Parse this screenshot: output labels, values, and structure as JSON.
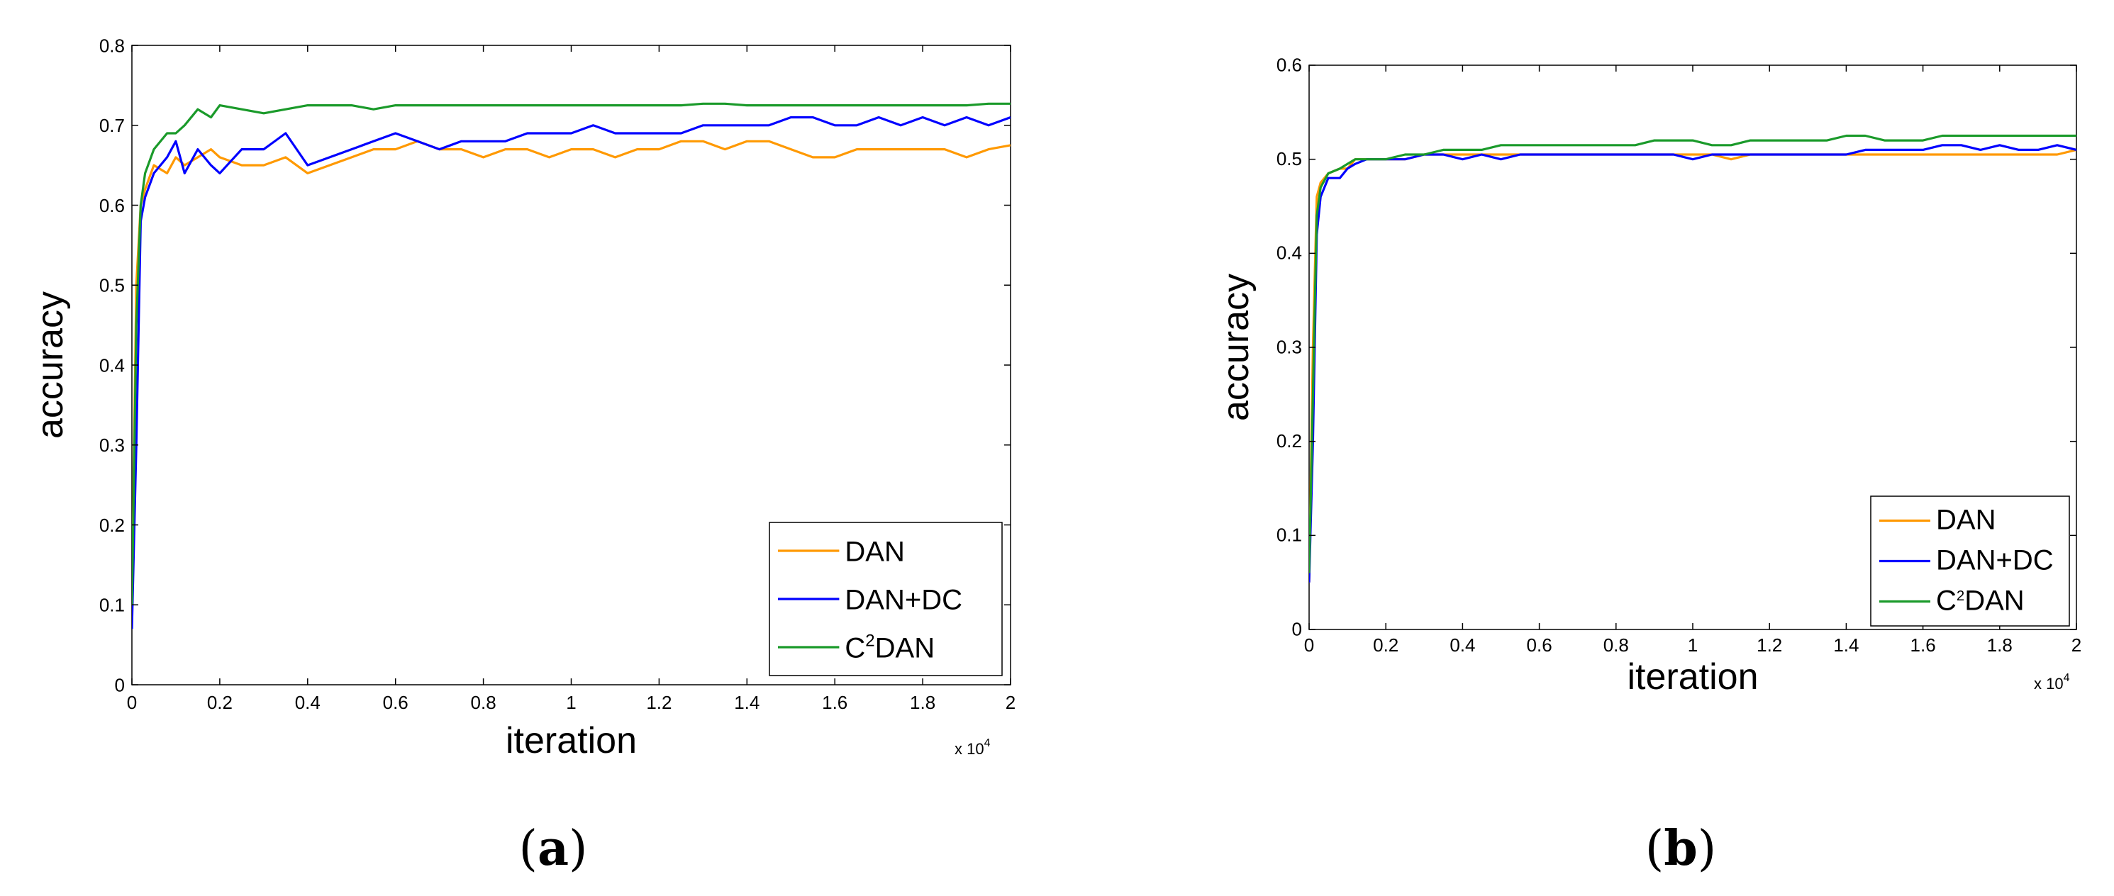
{
  "chart_data": [
    {
      "type": "line",
      "caption": "(a)",
      "caption_letter": "a",
      "xlabel": "iteration",
      "ylabel": "accuracy",
      "x_multiplier": "x 10",
      "x_exponent": "4",
      "xlim": [
        0,
        2
      ],
      "ylim": [
        0,
        0.8
      ],
      "xticks": [
        "0",
        "0.2",
        "0.4",
        "0.6",
        "0.8",
        "1",
        "1.2",
        "1.4",
        "1.6",
        "1.8",
        "2"
      ],
      "yticks": [
        "0",
        "0.1",
        "0.2",
        "0.3",
        "0.4",
        "0.5",
        "0.6",
        "0.7",
        "0.8"
      ],
      "legend_position": "bottom-right",
      "series": [
        {
          "name": "DAN",
          "color": "#ff9900",
          "x": [
            0,
            0.01,
            0.02,
            0.03,
            0.05,
            0.08,
            0.1,
            0.12,
            0.15,
            0.18,
            0.2,
            0.25,
            0.3,
            0.35,
            0.4,
            0.45,
            0.5,
            0.55,
            0.6,
            0.65,
            0.7,
            0.75,
            0.8,
            0.85,
            0.9,
            0.95,
            1.0,
            1.05,
            1.1,
            1.15,
            1.2,
            1.25,
            1.3,
            1.35,
            1.4,
            1.45,
            1.5,
            1.55,
            1.6,
            1.65,
            1.7,
            1.75,
            1.8,
            1.85,
            1.9,
            1.95,
            2.0
          ],
          "y": [
            0.1,
            0.5,
            0.6,
            0.62,
            0.65,
            0.64,
            0.66,
            0.65,
            0.66,
            0.67,
            0.66,
            0.65,
            0.65,
            0.66,
            0.64,
            0.65,
            0.66,
            0.67,
            0.67,
            0.68,
            0.67,
            0.67,
            0.66,
            0.67,
            0.67,
            0.66,
            0.67,
            0.67,
            0.66,
            0.67,
            0.67,
            0.68,
            0.68,
            0.67,
            0.68,
            0.68,
            0.67,
            0.66,
            0.66,
            0.67,
            0.67,
            0.67,
            0.67,
            0.67,
            0.66,
            0.67,
            0.675
          ]
        },
        {
          "name": "DAN+DC",
          "color": "#0000ff",
          "x": [
            0,
            0.01,
            0.02,
            0.03,
            0.05,
            0.08,
            0.1,
            0.12,
            0.15,
            0.18,
            0.2,
            0.25,
            0.3,
            0.35,
            0.4,
            0.45,
            0.5,
            0.55,
            0.6,
            0.65,
            0.7,
            0.75,
            0.8,
            0.85,
            0.9,
            0.95,
            1.0,
            1.05,
            1.1,
            1.15,
            1.2,
            1.25,
            1.3,
            1.35,
            1.4,
            1.45,
            1.5,
            1.55,
            1.6,
            1.65,
            1.7,
            1.75,
            1.8,
            1.85,
            1.9,
            1.95,
            2.0
          ],
          "y": [
            0.07,
            0.3,
            0.58,
            0.61,
            0.64,
            0.66,
            0.68,
            0.64,
            0.67,
            0.65,
            0.64,
            0.67,
            0.67,
            0.69,
            0.65,
            0.66,
            0.67,
            0.68,
            0.69,
            0.68,
            0.67,
            0.68,
            0.68,
            0.68,
            0.69,
            0.69,
            0.69,
            0.7,
            0.69,
            0.69,
            0.69,
            0.69,
            0.7,
            0.7,
            0.7,
            0.7,
            0.71,
            0.71,
            0.7,
            0.7,
            0.71,
            0.7,
            0.71,
            0.7,
            0.71,
            0.7,
            0.71
          ]
        },
        {
          "name": "C²DAN",
          "color": "#1a9a2a",
          "x": [
            0,
            0.01,
            0.02,
            0.03,
            0.05,
            0.08,
            0.1,
            0.12,
            0.15,
            0.18,
            0.2,
            0.25,
            0.3,
            0.35,
            0.4,
            0.45,
            0.5,
            0.55,
            0.6,
            0.65,
            0.7,
            0.75,
            0.8,
            0.85,
            0.9,
            0.95,
            1.0,
            1.05,
            1.1,
            1.15,
            1.2,
            1.25,
            1.3,
            1.35,
            1.4,
            1.45,
            1.5,
            1.55,
            1.6,
            1.65,
            1.7,
            1.75,
            1.8,
            1.85,
            1.9,
            1.95,
            2.0
          ],
          "y": [
            0.1,
            0.45,
            0.6,
            0.64,
            0.67,
            0.69,
            0.69,
            0.7,
            0.72,
            0.71,
            0.725,
            0.72,
            0.715,
            0.72,
            0.725,
            0.725,
            0.725,
            0.72,
            0.725,
            0.725,
            0.725,
            0.725,
            0.725,
            0.725,
            0.725,
            0.725,
            0.725,
            0.725,
            0.725,
            0.725,
            0.725,
            0.725,
            0.727,
            0.727,
            0.725,
            0.725,
            0.725,
            0.725,
            0.725,
            0.725,
            0.725,
            0.725,
            0.725,
            0.725,
            0.725,
            0.727,
            0.727
          ]
        }
      ]
    },
    {
      "type": "line",
      "caption": "(b)",
      "caption_letter": "b",
      "xlabel": "iteration",
      "ylabel": "accuracy",
      "x_multiplier": "x 10",
      "x_exponent": "4",
      "xlim": [
        0,
        2
      ],
      "ylim": [
        0,
        0.6
      ],
      "xticks": [
        "0",
        "0.2",
        "0.4",
        "0.6",
        "0.8",
        "1",
        "1.2",
        "1.4",
        "1.6",
        "1.8",
        "2"
      ],
      "yticks": [
        "0",
        "0.1",
        "0.2",
        "0.3",
        "0.4",
        "0.5",
        "0.6"
      ],
      "legend_position": "bottom-right",
      "series": [
        {
          "name": "DAN",
          "color": "#ff9900",
          "x": [
            0,
            0.01,
            0.02,
            0.03,
            0.05,
            0.08,
            0.1,
            0.12,
            0.15,
            0.2,
            0.25,
            0.3,
            0.35,
            0.4,
            0.45,
            0.5,
            0.55,
            0.6,
            0.65,
            0.7,
            0.75,
            0.8,
            0.85,
            0.9,
            0.95,
            1.0,
            1.05,
            1.1,
            1.15,
            1.2,
            1.25,
            1.3,
            1.35,
            1.4,
            1.45,
            1.5,
            1.55,
            1.6,
            1.65,
            1.7,
            1.75,
            1.8,
            1.85,
            1.9,
            1.95,
            2.0
          ],
          "y": [
            0.05,
            0.3,
            0.46,
            0.475,
            0.485,
            0.49,
            0.49,
            0.5,
            0.5,
            0.5,
            0.5,
            0.505,
            0.505,
            0.505,
            0.505,
            0.505,
            0.505,
            0.505,
            0.505,
            0.505,
            0.505,
            0.505,
            0.505,
            0.505,
            0.505,
            0.505,
            0.505,
            0.5,
            0.505,
            0.505,
            0.505,
            0.505,
            0.505,
            0.505,
            0.505,
            0.505,
            0.505,
            0.505,
            0.505,
            0.505,
            0.505,
            0.505,
            0.505,
            0.505,
            0.505,
            0.51
          ]
        },
        {
          "name": "DAN+DC",
          "color": "#0000ff",
          "x": [
            0,
            0.01,
            0.02,
            0.03,
            0.05,
            0.08,
            0.1,
            0.12,
            0.15,
            0.2,
            0.25,
            0.3,
            0.35,
            0.4,
            0.45,
            0.5,
            0.55,
            0.6,
            0.65,
            0.7,
            0.75,
            0.8,
            0.85,
            0.9,
            0.95,
            1.0,
            1.05,
            1.1,
            1.15,
            1.2,
            1.25,
            1.3,
            1.35,
            1.4,
            1.45,
            1.5,
            1.55,
            1.6,
            1.65,
            1.7,
            1.75,
            1.8,
            1.85,
            1.9,
            1.95,
            2.0
          ],
          "y": [
            0.05,
            0.2,
            0.42,
            0.46,
            0.48,
            0.48,
            0.49,
            0.495,
            0.5,
            0.5,
            0.5,
            0.505,
            0.505,
            0.5,
            0.505,
            0.5,
            0.505,
            0.505,
            0.505,
            0.505,
            0.505,
            0.505,
            0.505,
            0.505,
            0.505,
            0.5,
            0.505,
            0.505,
            0.505,
            0.505,
            0.505,
            0.505,
            0.505,
            0.505,
            0.51,
            0.51,
            0.51,
            0.51,
            0.515,
            0.515,
            0.51,
            0.515,
            0.51,
            0.51,
            0.515,
            0.51
          ]
        },
        {
          "name": "C²DAN",
          "color": "#1a9a2a",
          "x": [
            0,
            0.01,
            0.02,
            0.03,
            0.05,
            0.08,
            0.1,
            0.12,
            0.15,
            0.2,
            0.25,
            0.3,
            0.35,
            0.4,
            0.45,
            0.5,
            0.55,
            0.6,
            0.65,
            0.7,
            0.75,
            0.8,
            0.85,
            0.9,
            0.95,
            1.0,
            1.05,
            1.1,
            1.15,
            1.2,
            1.25,
            1.3,
            1.35,
            1.4,
            1.45,
            1.5,
            1.55,
            1.6,
            1.65,
            1.7,
            1.75,
            1.8,
            1.85,
            1.9,
            1.95,
            2.0
          ],
          "y": [
            0.06,
            0.25,
            0.44,
            0.47,
            0.485,
            0.49,
            0.495,
            0.5,
            0.5,
            0.5,
            0.505,
            0.505,
            0.51,
            0.51,
            0.51,
            0.515,
            0.515,
            0.515,
            0.515,
            0.515,
            0.515,
            0.515,
            0.515,
            0.52,
            0.52,
            0.52,
            0.515,
            0.515,
            0.52,
            0.52,
            0.52,
            0.52,
            0.52,
            0.525,
            0.525,
            0.52,
            0.52,
            0.52,
            0.525,
            0.525,
            0.525,
            0.525,
            0.525,
            0.525,
            0.525,
            0.525
          ]
        }
      ]
    }
  ]
}
